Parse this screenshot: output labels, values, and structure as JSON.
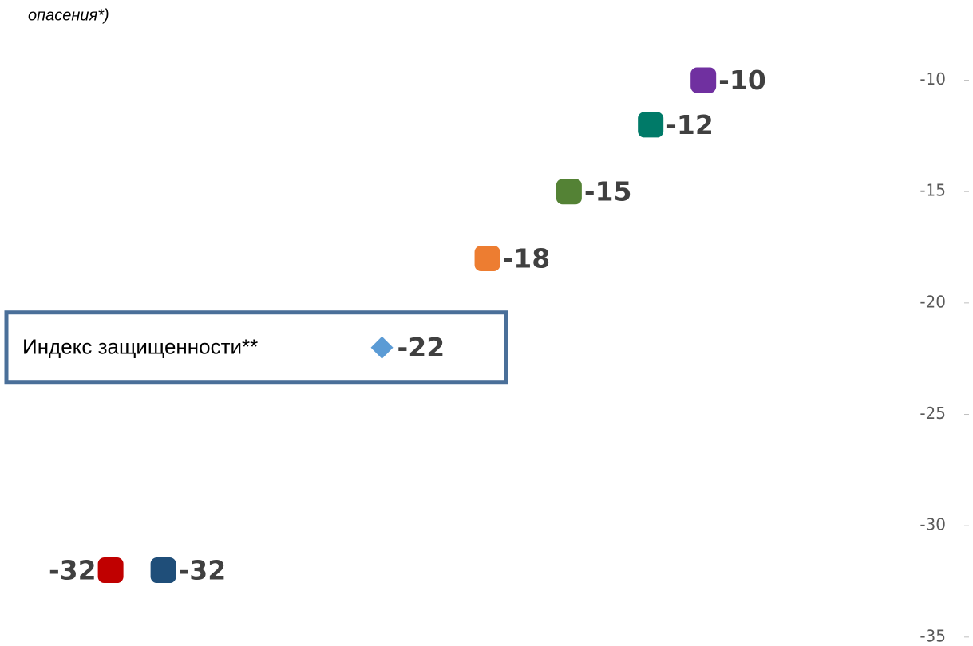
{
  "chart_data": {
    "type": "scatter",
    "title": "опасения*)",
    "xlim": [
      -36.7,
      -3.4
    ],
    "ylim": [
      -35.4,
      -6.4
    ],
    "yticks": [
      -10,
      -15,
      -20,
      -25,
      -30,
      -35
    ],
    "series": [
      {
        "color": "#7030a0",
        "marker": "square",
        "x": [
          -10
        ],
        "values": [
          -10
        ]
      },
      {
        "color": "#007a68",
        "marker": "square",
        "x": [
          -12
        ],
        "values": [
          -12
        ]
      },
      {
        "color": "#548235",
        "marker": "square",
        "x": [
          -15.1
        ],
        "values": [
          -15
        ]
      },
      {
        "color": "#ed7d31",
        "marker": "square",
        "x": [
          -18.2
        ],
        "values": [
          -18
        ]
      },
      {
        "name": "Индекс защищенности**",
        "color": "#5b9bd5",
        "marker": "diamond",
        "x": [
          -22.2
        ],
        "values": [
          -22
        ]
      },
      {
        "color": "#c00000",
        "marker": "square",
        "label_position": "left",
        "x": [
          -32.5
        ],
        "values": [
          -32
        ]
      },
      {
        "color": "#1f4e79",
        "marker": "square",
        "x": [
          -30.5
        ],
        "values": [
          -32
        ]
      }
    ]
  }
}
